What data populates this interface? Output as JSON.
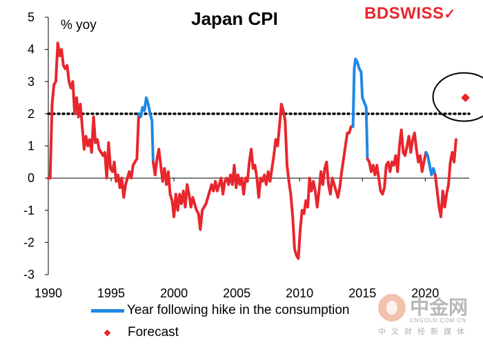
{
  "header": {
    "title": "Japan CPI",
    "unit_label": "% yoy",
    "brand_text": "BDSWISS",
    "brand_mark": "✓"
  },
  "legend": {
    "hike_label": "Year following hike in the consumption",
    "forecast_label": "Forecast"
  },
  "watermark": {
    "name": "中金网",
    "url": "CNGOLD.COM.CN",
    "subtitle": "中文财经新媒体"
  },
  "colors": {
    "cpi": "#e8262d",
    "hike": "#1e88e5",
    "forecast": "#e8262d",
    "reference_line": "#000000"
  },
  "chart_data": {
    "type": "line",
    "title": "Japan CPI",
    "ylabel": "% yoy",
    "xlabel": "",
    "xlim": [
      1990,
      2023.5
    ],
    "ylim": [
      -3,
      5
    ],
    "x_ticks": [
      1990,
      1995,
      2000,
      2005,
      2010,
      2015,
      2020
    ],
    "x_tick_labels": [
      "1990",
      "1995",
      "2000",
      "2005",
      "2010",
      "2015",
      "2020"
    ],
    "y_ticks": [
      -3,
      -2,
      -1,
      0,
      1,
      2,
      3,
      4,
      5
    ],
    "y_tick_labels": [
      "-3",
      "-2",
      "-1",
      "0",
      "1",
      "2",
      "3",
      "4",
      "5"
    ],
    "reference_line": {
      "y": 2,
      "style": "dotted"
    },
    "series": [
      {
        "name": "CPI",
        "role": "cpi",
        "points": [
          [
            1990.0,
            0.0
          ],
          [
            1990.15,
            0.0
          ],
          [
            1990.3,
            2.3
          ],
          [
            1990.45,
            2.9
          ],
          [
            1990.6,
            3.0
          ],
          [
            1990.75,
            4.2
          ],
          [
            1990.9,
            3.8
          ],
          [
            1991.05,
            4.0
          ],
          [
            1991.2,
            3.5
          ],
          [
            1991.35,
            3.4
          ],
          [
            1991.5,
            3.5
          ],
          [
            1991.65,
            3.0
          ],
          [
            1991.8,
            2.8
          ],
          [
            1991.95,
            3.0
          ],
          [
            1992.1,
            2.0
          ],
          [
            1992.25,
            2.5
          ],
          [
            1992.4,
            1.9
          ],
          [
            1992.55,
            2.3
          ],
          [
            1992.7,
            1.6
          ],
          [
            1992.85,
            0.9
          ],
          [
            1993.0,
            1.3
          ],
          [
            1993.15,
            1.0
          ],
          [
            1993.3,
            1.2
          ],
          [
            1993.45,
            0.8
          ],
          [
            1993.6,
            1.9
          ],
          [
            1993.75,
            1.1
          ],
          [
            1993.9,
            1.2
          ],
          [
            1994.05,
            0.9
          ],
          [
            1994.2,
            0.8
          ],
          [
            1994.35,
            0.7
          ],
          [
            1994.5,
            0.8
          ],
          [
            1994.65,
            0.0
          ],
          [
            1994.8,
            1.1
          ],
          [
            1994.95,
            0.3
          ],
          [
            1995.1,
            0.2
          ],
          [
            1995.25,
            0.5
          ],
          [
            1995.4,
            -0.1
          ],
          [
            1995.55,
            0.1
          ],
          [
            1995.7,
            -0.3
          ],
          [
            1995.85,
            0.0
          ],
          [
            1996.0,
            -0.6
          ],
          [
            1996.15,
            -0.2
          ],
          [
            1996.3,
            0.0
          ],
          [
            1996.45,
            0.2
          ],
          [
            1996.6,
            0.0
          ],
          [
            1996.75,
            0.4
          ],
          [
            1996.9,
            0.5
          ],
          [
            1997.05,
            0.6
          ],
          [
            1997.2,
            2.0
          ]
        ]
      },
      {
        "name": "Year following hike in the consumption",
        "role": "hike",
        "points": [
          [
            1997.2,
            2.0
          ],
          [
            1997.35,
            1.9
          ],
          [
            1997.5,
            2.2
          ],
          [
            1997.65,
            2.1
          ],
          [
            1997.8,
            2.5
          ],
          [
            1997.95,
            2.3
          ],
          [
            1998.1,
            2.0
          ],
          [
            1998.25,
            1.8
          ],
          [
            1998.35,
            0.5
          ]
        ]
      },
      {
        "name": "CPI",
        "role": "cpi",
        "points": [
          [
            1998.35,
            0.5
          ],
          [
            1998.5,
            0.1
          ],
          [
            1998.65,
            0.6
          ],
          [
            1998.8,
            0.9
          ],
          [
            1998.95,
            0.4
          ],
          [
            1999.1,
            -0.1
          ],
          [
            1999.25,
            0.3
          ],
          [
            1999.4,
            -0.2
          ],
          [
            1999.55,
            0.2
          ],
          [
            1999.7,
            -0.5
          ],
          [
            1999.85,
            -0.7
          ],
          [
            2000.0,
            -1.2
          ],
          [
            2000.15,
            -0.5
          ],
          [
            2000.3,
            -1.0
          ],
          [
            2000.45,
            -0.5
          ],
          [
            2000.6,
            -0.8
          ],
          [
            2000.75,
            -0.4
          ],
          [
            2000.9,
            -0.9
          ],
          [
            2001.05,
            -0.2
          ],
          [
            2001.2,
            -0.5
          ],
          [
            2001.35,
            -0.9
          ],
          [
            2001.5,
            -0.6
          ],
          [
            2001.65,
            -0.8
          ],
          [
            2001.8,
            -1.0
          ],
          [
            2001.95,
            -1.1
          ],
          [
            2002.1,
            -1.6
          ],
          [
            2002.25,
            -1.0
          ],
          [
            2002.4,
            -0.9
          ],
          [
            2002.55,
            -0.8
          ],
          [
            2002.7,
            -0.6
          ],
          [
            2002.85,
            -0.4
          ],
          [
            2003.0,
            -0.2
          ],
          [
            2003.15,
            -0.4
          ],
          [
            2003.3,
            -0.1
          ],
          [
            2003.45,
            -0.4
          ],
          [
            2003.6,
            -0.2
          ],
          [
            2003.75,
            0.0
          ],
          [
            2003.9,
            -0.5
          ],
          [
            2004.05,
            -0.1
          ],
          [
            2004.2,
            0.0
          ],
          [
            2004.35,
            -0.2
          ],
          [
            2004.5,
            0.1
          ],
          [
            2004.65,
            -0.2
          ],
          [
            2004.8,
            0.4
          ],
          [
            2004.95,
            -0.3
          ],
          [
            2005.1,
            0.1
          ],
          [
            2005.25,
            -0.2
          ],
          [
            2005.4,
            0.0
          ],
          [
            2005.55,
            -0.5
          ],
          [
            2005.7,
            0.0
          ],
          [
            2005.85,
            -0.1
          ],
          [
            2006.0,
            0.5
          ],
          [
            2006.15,
            0.9
          ],
          [
            2006.3,
            0.3
          ],
          [
            2006.45,
            0.4
          ],
          [
            2006.6,
            0.0
          ],
          [
            2006.75,
            -0.6
          ],
          [
            2006.9,
            0.0
          ],
          [
            2007.05,
            -0.1
          ],
          [
            2007.2,
            0.1
          ],
          [
            2007.35,
            -0.2
          ],
          [
            2007.5,
            0.2
          ],
          [
            2007.65,
            -0.1
          ],
          [
            2007.8,
            0.3
          ],
          [
            2007.95,
            0.7
          ],
          [
            2008.1,
            1.2
          ],
          [
            2008.25,
            1.0
          ],
          [
            2008.4,
            1.6
          ],
          [
            2008.55,
            2.3
          ],
          [
            2008.7,
            2.1
          ],
          [
            2008.85,
            1.8
          ],
          [
            2009.0,
            0.4
          ],
          [
            2009.15,
            -0.1
          ],
          [
            2009.3,
            -0.5
          ],
          [
            2009.45,
            -1.2
          ],
          [
            2009.6,
            -2.2
          ],
          [
            2009.75,
            -2.4
          ],
          [
            2009.9,
            -2.5
          ],
          [
            2010.05,
            -1.6
          ],
          [
            2010.2,
            -1.0
          ],
          [
            2010.35,
            -1.1
          ],
          [
            2010.5,
            -0.7
          ],
          [
            2010.65,
            -0.9
          ],
          [
            2010.8,
            0.0
          ],
          [
            2010.95,
            -0.4
          ],
          [
            2011.1,
            -0.1
          ],
          [
            2011.25,
            -0.4
          ],
          [
            2011.4,
            -0.9
          ],
          [
            2011.55,
            -0.4
          ],
          [
            2011.7,
            0.2
          ],
          [
            2011.85,
            -0.2
          ],
          [
            2012.0,
            0.3
          ],
          [
            2012.15,
            0.5
          ],
          [
            2012.3,
            -0.2
          ],
          [
            2012.45,
            -0.5
          ],
          [
            2012.6,
            0.0
          ],
          [
            2012.75,
            -0.2
          ],
          [
            2012.9,
            -0.4
          ],
          [
            2013.05,
            -0.6
          ],
          [
            2013.2,
            -0.3
          ],
          [
            2013.35,
            0.2
          ],
          [
            2013.5,
            0.6
          ],
          [
            2013.65,
            1.0
          ],
          [
            2013.8,
            1.4
          ],
          [
            2013.95,
            1.4
          ],
          [
            2014.1,
            1.6
          ],
          [
            2014.25,
            1.6
          ]
        ]
      },
      {
        "name": "Year following hike in the consumption",
        "role": "hike",
        "points": [
          [
            2014.25,
            1.6
          ],
          [
            2014.35,
            3.4
          ],
          [
            2014.45,
            3.7
          ],
          [
            2014.6,
            3.6
          ],
          [
            2014.75,
            3.4
          ],
          [
            2014.9,
            3.3
          ],
          [
            2015.0,
            2.5
          ],
          [
            2015.1,
            2.4
          ],
          [
            2015.2,
            2.3
          ],
          [
            2015.3,
            2.2
          ],
          [
            2015.4,
            0.6
          ]
        ]
      },
      {
        "name": "CPI",
        "role": "cpi",
        "points": [
          [
            2015.4,
            0.6
          ],
          [
            2015.55,
            0.5
          ],
          [
            2015.7,
            0.2
          ],
          [
            2015.85,
            0.4
          ],
          [
            2016.0,
            0.1
          ],
          [
            2016.15,
            0.4
          ],
          [
            2016.3,
            0.0
          ],
          [
            2016.45,
            -0.4
          ],
          [
            2016.6,
            -0.5
          ],
          [
            2016.75,
            -0.3
          ],
          [
            2016.9,
            0.4
          ],
          [
            2017.05,
            0.5
          ],
          [
            2017.2,
            0.2
          ],
          [
            2017.35,
            0.5
          ],
          [
            2017.5,
            0.4
          ],
          [
            2017.65,
            0.7
          ],
          [
            2017.8,
            0.2
          ],
          [
            2017.95,
            1.0
          ],
          [
            2018.1,
            1.5
          ],
          [
            2018.25,
            0.8
          ],
          [
            2018.4,
            0.7
          ],
          [
            2018.55,
            1.0
          ],
          [
            2018.7,
            1.3
          ],
          [
            2018.85,
            0.8
          ],
          [
            2019.0,
            1.2
          ],
          [
            2019.15,
            1.4
          ],
          [
            2019.3,
            0.9
          ],
          [
            2019.45,
            0.5
          ],
          [
            2019.6,
            0.7
          ],
          [
            2019.75,
            0.2
          ],
          [
            2019.9,
            0.5
          ],
          [
            2020.05,
            0.8
          ]
        ]
      },
      {
        "name": "Year following hike in the consumption",
        "role": "hike",
        "points": [
          [
            2020.05,
            0.8
          ],
          [
            2020.2,
            0.7
          ],
          [
            2020.35,
            0.4
          ],
          [
            2020.5,
            0.1
          ],
          [
            2020.65,
            0.3
          ],
          [
            2020.8,
            0.1
          ]
        ]
      },
      {
        "name": "CPI",
        "role": "cpi",
        "points": [
          [
            2020.8,
            0.1
          ],
          [
            2020.95,
            -0.4
          ],
          [
            2021.1,
            -0.9
          ],
          [
            2021.25,
            -1.2
          ],
          [
            2021.4,
            -0.4
          ],
          [
            2021.55,
            -0.9
          ],
          [
            2021.7,
            -0.5
          ],
          [
            2021.85,
            -0.2
          ],
          [
            2022.0,
            0.5
          ],
          [
            2022.15,
            0.8
          ],
          [
            2022.3,
            0.5
          ],
          [
            2022.45,
            1.2
          ]
        ]
      }
    ],
    "forecast": {
      "x": 2023.2,
      "y": 2.5,
      "label": "Forecast",
      "highlighted": true
    }
  }
}
